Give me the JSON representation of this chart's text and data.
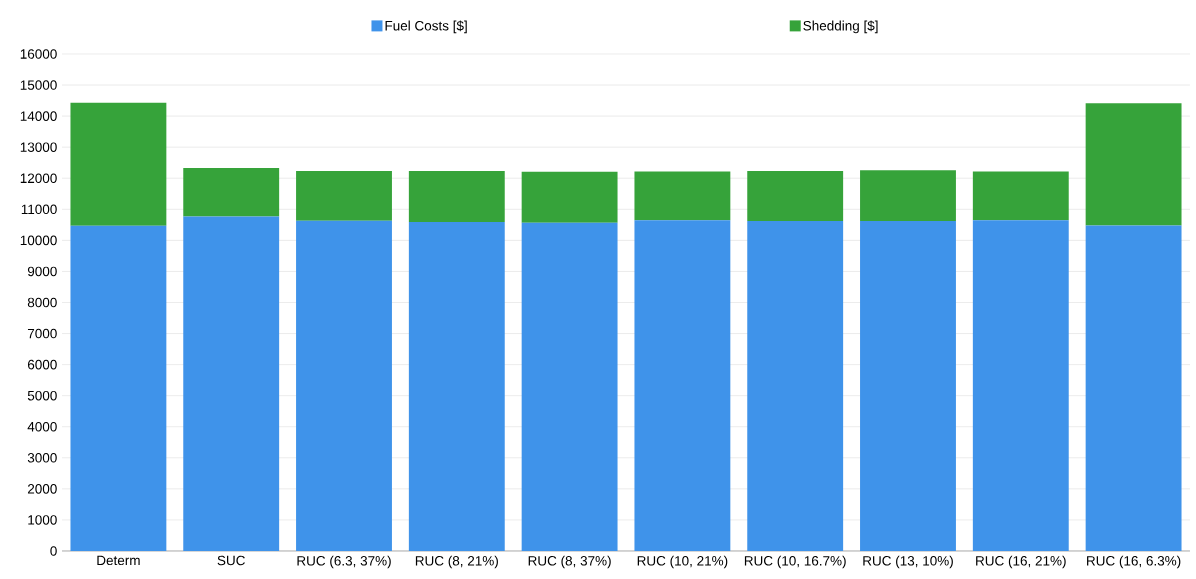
{
  "chart_data": {
    "type": "bar",
    "stacked": true,
    "categories": [
      "Determ",
      "SUC",
      "RUC (6.3, 37%)",
      "RUC (8, 21%)",
      "RUC (8, 37%)",
      "RUC (10, 21%)",
      "RUC (10, 16.7%)",
      "RUC (13, 10%)",
      "RUC (16, 21%)",
      "RUC (16, 6.3%)"
    ],
    "series": [
      {
        "name": "Fuel Costs [$]",
        "color": "#3f93ea",
        "values": [
          10470,
          10770,
          10630,
          10590,
          10570,
          10650,
          10620,
          10620,
          10650,
          10480
        ]
      },
      {
        "name": "Shedding  [$]",
        "color": "#36a33a",
        "values": [
          3960,
          1560,
          1600,
          1640,
          1640,
          1570,
          1610,
          1640,
          1570,
          3930
        ]
      }
    ],
    "ylim": [
      0,
      16000
    ],
    "yticks": [
      0,
      1000,
      2000,
      3000,
      4000,
      5000,
      6000,
      7000,
      8000,
      9000,
      10000,
      11000,
      12000,
      13000,
      14000,
      15000,
      16000
    ],
    "grid": "y",
    "legend": "top"
  }
}
